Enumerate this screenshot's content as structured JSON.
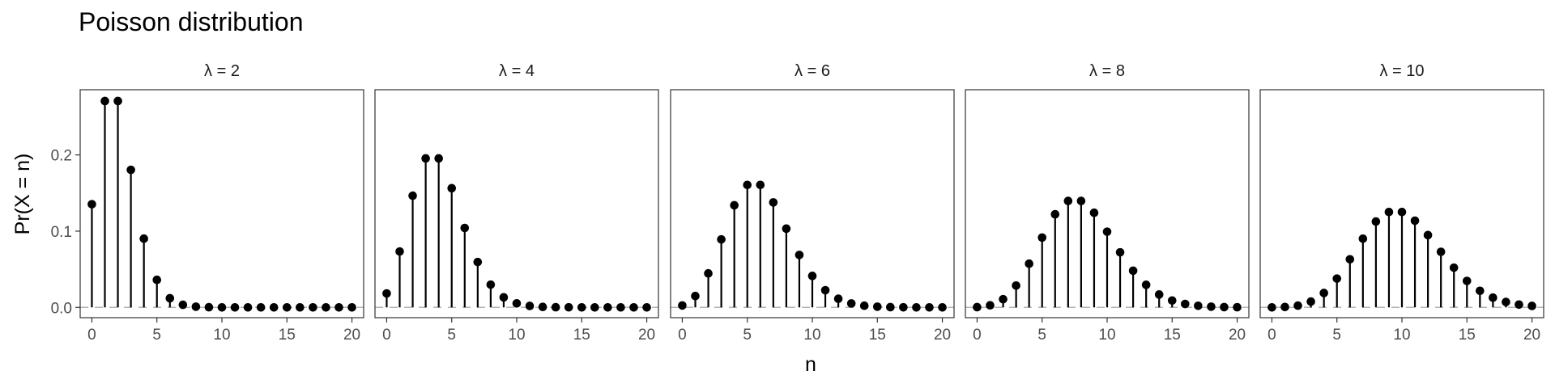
{
  "chart_data": {
    "type": "scatter",
    "title": "Poisson distribution",
    "xlabel": "n",
    "ylabel": "Pr(X = n)",
    "xlim": [
      -0.9,
      20.9
    ],
    "ylim": [
      -0.0135,
      0.2855
    ],
    "x_ticks": [
      0,
      5,
      10,
      15,
      20
    ],
    "x_tick_labels": [
      "0",
      "5",
      "10",
      "15",
      "20"
    ],
    "y_ticks": [
      0.0,
      0.1,
      0.2
    ],
    "y_tick_labels": [
      "0.0",
      "0.1",
      "0.2"
    ],
    "x": [
      0,
      1,
      2,
      3,
      4,
      5,
      6,
      7,
      8,
      9,
      10,
      11,
      12,
      13,
      14,
      15,
      16,
      17,
      18,
      19,
      20
    ],
    "zero_reference_line": true,
    "grid": false,
    "panels": [
      {
        "strip_label": "λ = 2",
        "values": [
          0.1353,
          0.2707,
          0.2707,
          0.1804,
          0.0902,
          0.0361,
          0.012,
          0.0034,
          0.0009,
          0.0002,
          0.0,
          0.0,
          0.0,
          0.0,
          0.0,
          0.0,
          0.0,
          0.0,
          0.0,
          0.0,
          0.0
        ]
      },
      {
        "strip_label": "λ = 4",
        "values": [
          0.0183,
          0.0733,
          0.1465,
          0.1954,
          0.1954,
          0.1563,
          0.1042,
          0.0595,
          0.0298,
          0.0132,
          0.0053,
          0.0019,
          0.0006,
          0.0002,
          0.0001,
          0.0,
          0.0,
          0.0,
          0.0,
          0.0,
          0.0
        ]
      },
      {
        "strip_label": "λ = 6",
        "values": [
          0.0025,
          0.0149,
          0.0446,
          0.0892,
          0.1339,
          0.1606,
          0.1606,
          0.1377,
          0.1033,
          0.0688,
          0.0413,
          0.0225,
          0.0113,
          0.0052,
          0.0022,
          0.0009,
          0.0003,
          0.0001,
          0.0,
          0.0,
          0.0
        ]
      },
      {
        "strip_label": "λ = 8",
        "values": [
          0.0003,
          0.0027,
          0.0107,
          0.0286,
          0.0573,
          0.0916,
          0.1221,
          0.1396,
          0.1396,
          0.1241,
          0.0993,
          0.0722,
          0.0481,
          0.0296,
          0.0169,
          0.009,
          0.0045,
          0.0021,
          0.0009,
          0.0004,
          0.0002
        ]
      },
      {
        "strip_label": "λ = 10",
        "values": [
          0.0,
          0.0005,
          0.0023,
          0.0076,
          0.0189,
          0.0378,
          0.0631,
          0.0901,
          0.1126,
          0.1251,
          0.1251,
          0.1137,
          0.0948,
          0.0729,
          0.0521,
          0.0347,
          0.0217,
          0.0128,
          0.0071,
          0.0037,
          0.0019
        ]
      }
    ]
  }
}
